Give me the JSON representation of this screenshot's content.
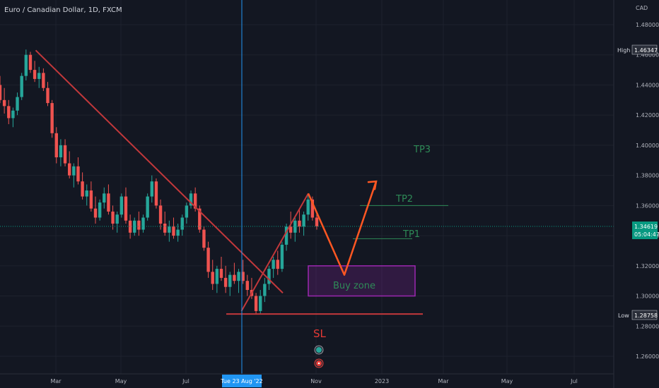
{
  "title": "Euro / Canadian Dollar, 1D, FXCM",
  "currency": "CAD",
  "y_ticks": [
    "1.48000",
    "1.46000",
    "1.44000",
    "1.42000",
    "1.40000",
    "1.38000",
    "1.36000",
    "1.34000",
    "1.32000",
    "1.30000",
    "1.28000",
    "1.26000"
  ],
  "x_ticks": [
    "Mar",
    "May",
    "Jul",
    "Nov",
    "2023",
    "Mar",
    "May",
    "Jul"
  ],
  "crosshair_label": "Tue 23 Aug '22",
  "high": {
    "label": "High",
    "value": "1.46347"
  },
  "low": {
    "label": "Low",
    "value": "1.28758"
  },
  "last_price": {
    "value": "1.34619",
    "countdown": "05:04:47"
  },
  "annotations": {
    "tp1": "TP1",
    "tp2": "TP2",
    "tp3": "TP3",
    "sl": "SL",
    "buy_zone": "Buy zone"
  },
  "colors": {
    "background": "#131722",
    "up": "#26a69a",
    "down": "#ef5350",
    "trend": "#c2383b",
    "projection": "#ff5722",
    "tp": "#2e8b57",
    "buy_zone": "#9c27b0",
    "crosshair": "#2196f3"
  },
  "chart_data": {
    "type": "candlestick",
    "symbol": "EUR/CAD",
    "interval": "1D",
    "ylim": [
      1.25,
      1.49
    ],
    "x_range": [
      "2022-01-01",
      "2023-08-31"
    ],
    "grid": true,
    "series": [
      {
        "name": "EUR/CAD",
        "values": [
          [
            1.44,
            1.446,
            1.428,
            1.43
          ],
          [
            1.43,
            1.438,
            1.421,
            1.426
          ],
          [
            1.426,
            1.43,
            1.414,
            1.418
          ],
          [
            1.418,
            1.425,
            1.412,
            1.423
          ],
          [
            1.423,
            1.435,
            1.42,
            1.432
          ],
          [
            1.432,
            1.448,
            1.43,
            1.446
          ],
          [
            1.446,
            1.4635,
            1.443,
            1.46
          ],
          [
            1.46,
            1.462,
            1.448,
            1.45
          ],
          [
            1.45,
            1.456,
            1.442,
            1.444
          ],
          [
            1.444,
            1.452,
            1.438,
            1.448
          ],
          [
            1.448,
            1.451,
            1.436,
            1.438
          ],
          [
            1.438,
            1.442,
            1.426,
            1.428
          ],
          [
            1.428,
            1.43,
            1.405,
            1.408
          ],
          [
            1.408,
            1.412,
            1.388,
            1.392
          ],
          [
            1.392,
            1.404,
            1.386,
            1.4
          ],
          [
            1.4,
            1.404,
            1.386,
            1.388
          ],
          [
            1.388,
            1.396,
            1.378,
            1.38
          ],
          [
            1.38,
            1.388,
            1.372,
            1.386
          ],
          [
            1.386,
            1.392,
            1.374,
            1.376
          ],
          [
            1.376,
            1.382,
            1.364,
            1.366
          ],
          [
            1.366,
            1.374,
            1.36,
            1.37
          ],
          [
            1.37,
            1.376,
            1.356,
            1.358
          ],
          [
            1.358,
            1.366,
            1.348,
            1.352
          ],
          [
            1.352,
            1.364,
            1.35,
            1.362
          ],
          [
            1.362,
            1.372,
            1.358,
            1.368
          ],
          [
            1.368,
            1.374,
            1.354,
            1.356
          ],
          [
            1.356,
            1.36,
            1.344,
            1.348
          ],
          [
            1.348,
            1.356,
            1.342,
            1.354
          ],
          [
            1.354,
            1.368,
            1.352,
            1.366
          ],
          [
            1.366,
            1.372,
            1.348,
            1.35
          ],
          [
            1.35,
            1.354,
            1.338,
            1.342
          ],
          [
            1.342,
            1.352,
            1.34,
            1.35
          ],
          [
            1.35,
            1.356,
            1.34,
            1.344
          ],
          [
            1.344,
            1.354,
            1.342,
            1.352
          ],
          [
            1.352,
            1.368,
            1.35,
            1.366
          ],
          [
            1.366,
            1.38,
            1.362,
            1.376
          ],
          [
            1.376,
            1.378,
            1.358,
            1.36
          ],
          [
            1.36,
            1.364,
            1.344,
            1.348
          ],
          [
            1.348,
            1.356,
            1.34,
            1.342
          ],
          [
            1.342,
            1.35,
            1.336,
            1.346
          ],
          [
            1.346,
            1.352,
            1.338,
            1.34
          ],
          [
            1.34,
            1.348,
            1.336,
            1.344
          ],
          [
            1.344,
            1.354,
            1.34,
            1.352
          ],
          [
            1.352,
            1.362,
            1.348,
            1.36
          ],
          [
            1.36,
            1.37,
            1.358,
            1.368
          ],
          [
            1.368,
            1.372,
            1.356,
            1.358
          ],
          [
            1.358,
            1.36,
            1.342,
            1.344
          ],
          [
            1.344,
            1.346,
            1.33,
            1.332
          ],
          [
            1.332,
            1.336,
            1.312,
            1.316
          ],
          [
            1.316,
            1.324,
            1.304,
            1.308
          ],
          [
            1.308,
            1.32,
            1.302,
            1.318
          ],
          [
            1.318,
            1.326,
            1.31,
            1.312
          ],
          [
            1.312,
            1.32,
            1.302,
            1.306
          ],
          [
            1.306,
            1.316,
            1.3,
            1.314
          ],
          [
            1.314,
            1.322,
            1.308,
            1.31
          ],
          [
            1.31,
            1.318,
            1.302,
            1.316
          ],
          [
            1.316,
            1.324,
            1.308,
            1.31
          ],
          [
            1.31,
            1.314,
            1.3,
            1.304
          ],
          [
            1.304,
            1.312,
            1.298,
            1.3
          ],
          [
            1.3,
            1.302,
            1.2876,
            1.29
          ],
          [
            1.29,
            1.304,
            1.288,
            1.3
          ],
          [
            1.3,
            1.312,
            1.296,
            1.308
          ],
          [
            1.308,
            1.32,
            1.304,
            1.318
          ],
          [
            1.318,
            1.326,
            1.312,
            1.324
          ],
          [
            1.324,
            1.33,
            1.314,
            1.318
          ],
          [
            1.318,
            1.336,
            1.316,
            1.334
          ],
          [
            1.334,
            1.348,
            1.33,
            1.346
          ],
          [
            1.346,
            1.356,
            1.338,
            1.342
          ],
          [
            1.342,
            1.352,
            1.336,
            1.35
          ],
          [
            1.35,
            1.358,
            1.342,
            1.346
          ],
          [
            1.346,
            1.356,
            1.34,
            1.354
          ],
          [
            1.354,
            1.368,
            1.35,
            1.364
          ],
          [
            1.364,
            1.366,
            1.35,
            1.352
          ],
          [
            1.352,
            1.356,
            1.344,
            1.3462
          ]
        ]
      }
    ],
    "drawings": {
      "downtrend_line": {
        "start": [
          "2022-02-10",
          1.463
        ],
        "end": [
          "2022-10-01",
          1.302
        ]
      },
      "uptrend_line": {
        "start": [
          "2022-08-23",
          1.29
        ],
        "end": [
          "2022-10-25",
          1.368
        ]
      },
      "projection_path": [
        [
          "2022-10-25",
          1.368
        ],
        [
          "2022-11-28",
          1.314
        ],
        [
          "2022-12-28",
          1.376
        ]
      ],
      "sl_level": 1.288,
      "tp1_level": 1.338,
      "tp2_level": 1.36,
      "buy_zone": {
        "from": 1.3,
        "to": 1.32
      }
    }
  }
}
